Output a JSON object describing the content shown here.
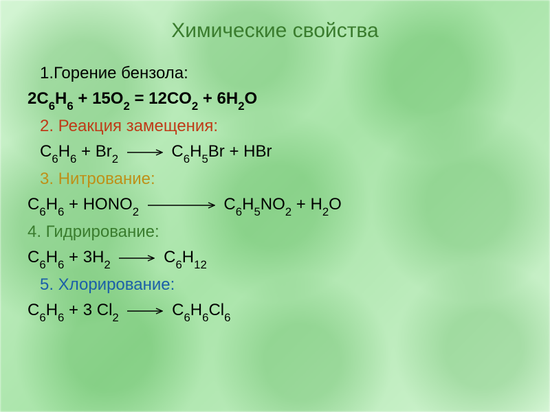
{
  "background": {
    "gradient_from": "#d4f5d4",
    "gradient_mid": "#a8e4a8",
    "gradient_to": "#d4f5d4",
    "hexagon_tint": "rgba(0,130,0,0.18)"
  },
  "title": {
    "text": "Химические свойства",
    "color": "#3a7c2e",
    "fontsize": 30
  },
  "content": {
    "fontsize": 24,
    "line_height": 1.55,
    "default_color": "#000000",
    "colors": {
      "h2": "#bf3a17",
      "h3": "#be9018",
      "h4": "#3a7c2e",
      "h5": "#1b5fa8"
    }
  },
  "lines": {
    "h1": "1.Горение бензола:",
    "eq1": "2C₆H₆ + 15O₂ = 12CO₂ + 6H₂O",
    "h2": "2. Реакция замещения:",
    "eq2_lhs": "C₆H₆ + Br₂",
    "eq2_rhs": "C₆H₅Br  + HBr",
    "h3": "3. Нитрование:",
    "eq3_lhs": "C₆H₆ + HONO₂",
    "eq3_rhs": "C₆H₅NO₂ + H₂O",
    "h4": "4. Гидрирование:",
    "eq4_lhs": "C₆H₆ + 3H₂",
    "eq4_rhs": "C₆H₁₂",
    "h5": "5. Хлорирование:",
    "eq5_lhs": "C₆H₆ + 3 Cl₂",
    "eq5_rhs": "C₆H₆Cl₆"
  },
  "arrow": {
    "width": 52,
    "height": 10,
    "stroke": "#000000",
    "stroke_width": 1.4
  },
  "arrow_long": {
    "width": 98
  }
}
